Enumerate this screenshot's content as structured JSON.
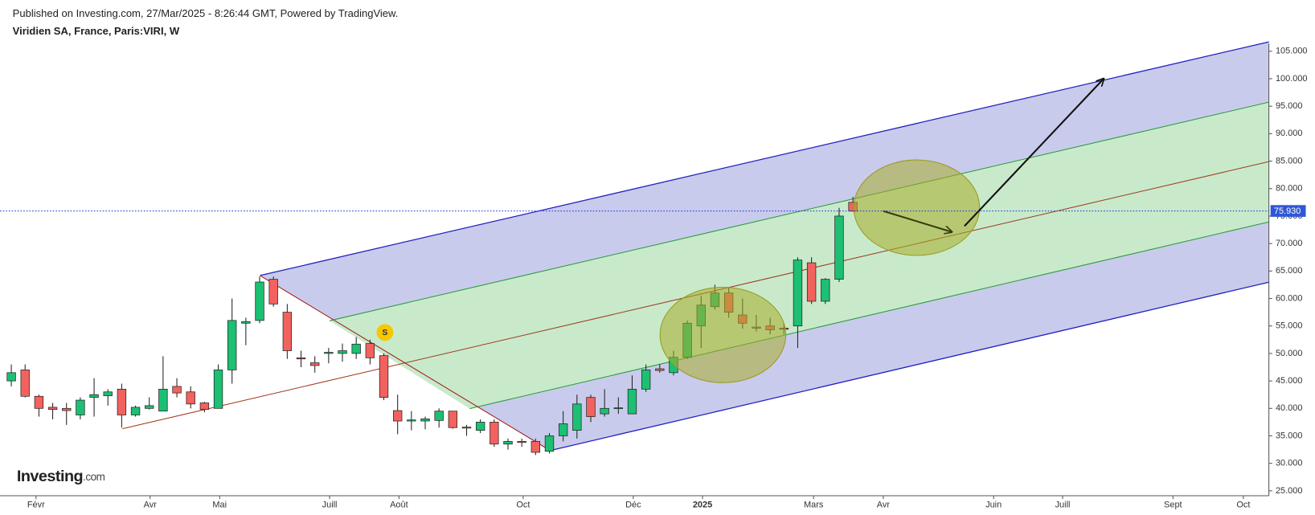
{
  "chart_data": {
    "type": "candlestick",
    "header": "Published on Investing.com, 27/Mar/2025 - 8:26:44 GMT, Powered by TradingView.",
    "title": "Viridien SA, France, Paris:VIRI, W",
    "logo": "Investing",
    "logo_suffix": ".com",
    "event_marker": "S",
    "up_color": "#1dbf73",
    "down_color": "#f2625e",
    "open": [
      45.0,
      47.0,
      42.2,
      40.2,
      40.0,
      38.8,
      42.0,
      42.3,
      43.5,
      38.8,
      40.0,
      39.5,
      44.0,
      43.0,
      41.0,
      40.0,
      47.0,
      55.5,
      56.0,
      63.5,
      57.5,
      49.2,
      48.3,
      50.0,
      50.0,
      50.0,
      51.8,
      49.6,
      39.6,
      37.7,
      37.7,
      37.8,
      39.5,
      36.6,
      36.0,
      37.5,
      33.5,
      34.0,
      34.0,
      32.2,
      35.0,
      36.0,
      42.0,
      39.0,
      40.0,
      39.0,
      43.5,
      47.2,
      46.5,
      49.3,
      55.0,
      58.5,
      61.0,
      57.0,
      54.8,
      55.0,
      54.6,
      55.0,
      66.5,
      59.5,
      63.5,
      77.5
    ],
    "high": [
      48.0,
      48.0,
      42.5,
      41.0,
      41.0,
      42.0,
      45.5,
      43.5,
      44.5,
      40.5,
      42.0,
      49.5,
      45.5,
      44.0,
      41.2,
      48.0,
      60.0,
      56.5,
      64.0,
      64.0,
      59.0,
      50.5,
      49.5,
      51.0,
      51.8,
      53.0,
      52.5,
      50.0,
      42.5,
      39.5,
      38.5,
      40.0,
      39.5,
      37.0,
      38.0,
      38.0,
      34.5,
      34.5,
      34.5,
      35.5,
      39.5,
      42.5,
      42.5,
      43.5,
      42.0,
      46.0,
      48.0,
      48.0,
      50.5,
      56.0,
      60.5,
      62.5,
      62.0,
      60.0,
      57.0,
      56.5,
      55.5,
      67.5,
      67.5,
      63.7,
      76.5,
      78.5
    ],
    "low": [
      44.0,
      42.0,
      38.5,
      38.0,
      37.0,
      38.0,
      38.5,
      40.5,
      36.5,
      38.5,
      39.8,
      39.5,
      42.0,
      40.0,
      39.3,
      40.0,
      44.5,
      51.5,
      55.5,
      58.5,
      49.0,
      47.5,
      46.5,
      48.2,
      48.5,
      49.0,
      48.0,
      41.5,
      35.3,
      36.0,
      36.2,
      36.5,
      36.3,
      35.0,
      35.5,
      33.0,
      32.5,
      33.0,
      31.5,
      31.8,
      34.0,
      34.5,
      37.5,
      38.5,
      39.0,
      39.0,
      43.0,
      46.5,
      46.0,
      49.0,
      51.0,
      58.0,
      56.5,
      54.5,
      54.0,
      53.5,
      53.5,
      51.0,
      59.0,
      59.0,
      63.0,
      75.8
    ],
    "close": [
      46.5,
      42.2,
      40.0,
      39.8,
      39.6,
      41.5,
      42.5,
      43.0,
      38.8,
      40.2,
      40.5,
      43.5,
      42.8,
      40.8,
      39.8,
      47.0,
      56.0,
      55.8,
      63.0,
      59.0,
      50.5,
      49.0,
      47.8,
      50.2,
      50.5,
      51.7,
      49.2,
      42.0,
      37.7,
      37.9,
      38.1,
      39.5,
      36.5,
      36.4,
      37.5,
      33.5,
      34.0,
      33.8,
      32.0,
      35.0,
      37.2,
      40.8,
      38.5,
      40.0,
      40.1,
      43.5,
      47.0,
      46.9,
      49.3,
      55.5,
      58.8,
      61.0,
      57.5,
      55.5,
      54.6,
      54.3,
      54.4,
      67.0,
      59.5,
      63.5,
      75.0,
      75.9
    ],
    "last_price": {
      "value": 75.93,
      "label": "75.930"
    },
    "ylim": [
      24.1,
      106.4
    ],
    "yticks": [
      {
        "value": 25,
        "label": "25.000"
      },
      {
        "value": 30,
        "label": "30.000"
      },
      {
        "value": 35,
        "label": "35.000"
      },
      {
        "value": 40,
        "label": "40.000"
      },
      {
        "value": 45,
        "label": "45.000"
      },
      {
        "value": 50,
        "label": "50.000"
      },
      {
        "value": 55,
        "label": "55.000"
      },
      {
        "value": 60,
        "label": "60.000"
      },
      {
        "value": 65,
        "label": "65.000"
      },
      {
        "value": 70,
        "label": "70.000"
      },
      {
        "value": 75,
        "label": "75.000"
      },
      {
        "value": 80,
        "label": "80.000"
      },
      {
        "value": 85,
        "label": "85.000"
      },
      {
        "value": 90,
        "label": "90.000"
      },
      {
        "value": 95,
        "label": "95.000"
      },
      {
        "value": 100,
        "label": "100.000"
      },
      {
        "value": 105,
        "label": "105.000"
      }
    ],
    "xlim": [
      -0.82,
      91.15
    ],
    "xticks": [
      {
        "value": 1.79,
        "label": "Févr"
      },
      {
        "value": 10.06,
        "label": "Avr"
      },
      {
        "value": 15.1,
        "label": "Mai"
      },
      {
        "value": 23.07,
        "label": "Juill"
      },
      {
        "value": 28.1,
        "label": "Août"
      },
      {
        "value": 37.1,
        "label": "Oct"
      },
      {
        "value": 45.08,
        "label": "Déc"
      },
      {
        "value": 50.1,
        "label": "2025"
      },
      {
        "value": 58.15,
        "label": "Mars"
      },
      {
        "value": 63.2,
        "label": "Avr"
      },
      {
        "value": 71.2,
        "label": "Juin"
      },
      {
        "value": 76.2,
        "label": "Juill"
      },
      {
        "value": 84.2,
        "label": "Sept"
      },
      {
        "value": 89.3,
        "label": "Oct"
      }
    ]
  }
}
